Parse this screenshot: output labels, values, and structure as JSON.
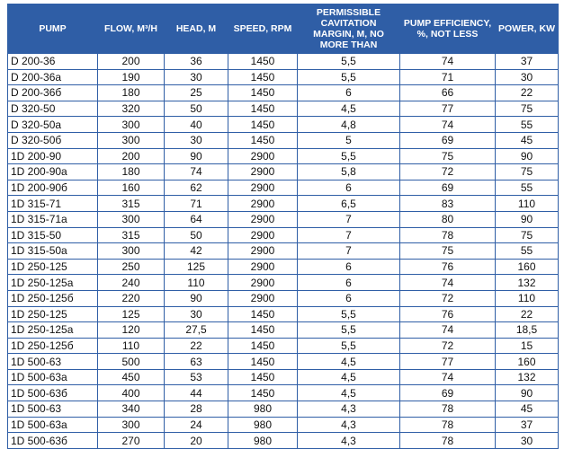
{
  "table": {
    "header": [
      "PUMP",
      "FLOW, M³/H",
      "HEAD, M",
      "SPEED, RPM",
      "PERMISSIBLE CAVITATION MARGIN, M, NO MORE THAN",
      "PUMP EFFICIENCY, %, NOT LESS",
      "POWER, KW"
    ],
    "rows": [
      [
        "D 200-36",
        "200",
        "36",
        "1450",
        "5,5",
        "74",
        "37"
      ],
      [
        "D 200-36a",
        "190",
        "30",
        "1450",
        "5,5",
        "71",
        "30"
      ],
      [
        "D 200-36б",
        "180",
        "25",
        "1450",
        "6",
        "66",
        "22"
      ],
      [
        "D 320-50",
        "320",
        "50",
        "1450",
        "4,5",
        "77",
        "75"
      ],
      [
        "D 320-50a",
        "300",
        "40",
        "1450",
        "4,8",
        "74",
        "55"
      ],
      [
        "D 320-50б",
        "300",
        "30",
        "1450",
        "5",
        "69",
        "45"
      ],
      [
        "1D 200-90",
        "200",
        "90",
        "2900",
        "5,5",
        "75",
        "90"
      ],
      [
        "1D 200-90a",
        "180",
        "74",
        "2900",
        "5,8",
        "72",
        "75"
      ],
      [
        "1D 200-90б",
        "160",
        "62",
        "2900",
        "6",
        "69",
        "55"
      ],
      [
        "1D 315-71",
        "315",
        "71",
        "2900",
        "6,5",
        "83",
        "110"
      ],
      [
        "1D 315-71a",
        "300",
        "64",
        "2900",
        "7",
        "80",
        "90"
      ],
      [
        "1D 315-50",
        "315",
        "50",
        "2900",
        "7",
        "78",
        "75"
      ],
      [
        "1D 315-50a",
        "300",
        "42",
        "2900",
        "7",
        "75",
        "55"
      ],
      [
        "1D 250-125",
        "250",
        "125",
        "2900",
        "6",
        "76",
        "160"
      ],
      [
        "1D 250-125a",
        "240",
        "110",
        "2900",
        "6",
        "74",
        "132"
      ],
      [
        "1D 250-125б",
        "220",
        "90",
        "2900",
        "6",
        "72",
        "110"
      ],
      [
        "1D 250-125",
        "125",
        "30",
        "1450",
        "5,5",
        "76",
        "22"
      ],
      [
        "1D 250-125a",
        "120",
        "27,5",
        "1450",
        "5,5",
        "74",
        "18,5"
      ],
      [
        "1D 250-125б",
        "110",
        "22",
        "1450",
        "5,5",
        "72",
        "15"
      ],
      [
        "1D 500-63",
        "500",
        "63",
        "1450",
        "4,5",
        "77",
        "160"
      ],
      [
        "1D 500-63a",
        "450",
        "53",
        "1450",
        "4,5",
        "74",
        "132"
      ],
      [
        "1D 500-63б",
        "400",
        "44",
        "1450",
        "4,5",
        "69",
        "90"
      ],
      [
        "1D 500-63",
        "340",
        "28",
        "980",
        "4,3",
        "78",
        "45"
      ],
      [
        "1D 500-63a",
        "300",
        "24",
        "980",
        "4,3",
        "78",
        "37"
      ],
      [
        "1D 500-63б",
        "270",
        "20",
        "980",
        "4,3",
        "78",
        "30"
      ]
    ]
  }
}
